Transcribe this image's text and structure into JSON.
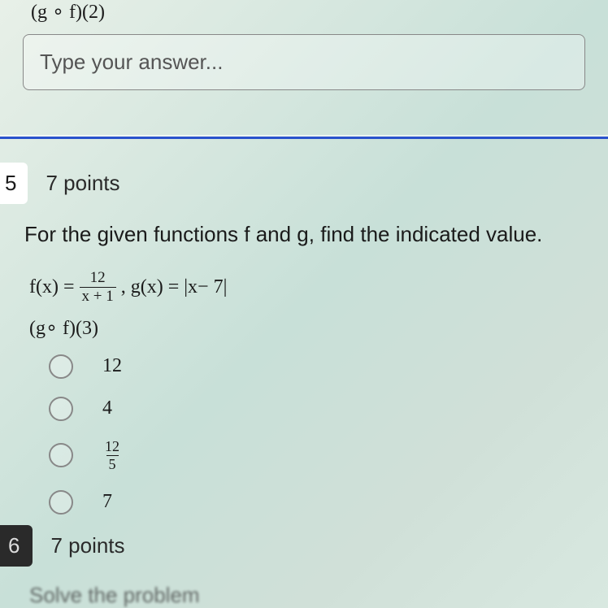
{
  "top": {
    "expression": "(g ∘ f)(2)",
    "input_placeholder": "Type your answer..."
  },
  "question5": {
    "number": "5",
    "points": "7 points",
    "prompt": "For the given functions f and g, find the indicated value.",
    "fx_label": "f(x) =",
    "frac_num": "12",
    "frac_den": "x + 1",
    "gx_full": ", g(x) = |x− 7|",
    "comp_expr": "(g∘ f)(3)",
    "options": [
      {
        "type": "plain",
        "text": "12"
      },
      {
        "type": "plain",
        "text": "4"
      },
      {
        "type": "frac",
        "num": "12",
        "den": "5"
      },
      {
        "type": "plain",
        "text": "7"
      }
    ]
  },
  "question6": {
    "number": "6",
    "points": "7 points",
    "prompt_partial": "Solve the problem"
  },
  "colors": {
    "divider": "#2952cc",
    "text": "#1a1a1a",
    "border": "#888888"
  }
}
